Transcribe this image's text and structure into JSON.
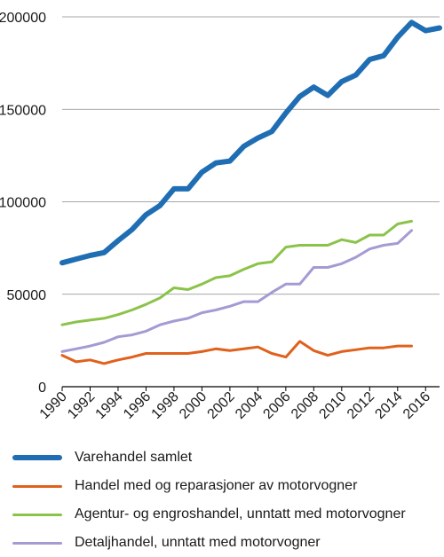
{
  "chart_data": {
    "type": "line",
    "title": "",
    "xlabel": "",
    "ylabel": "",
    "ylim": [
      0,
      200000
    ],
    "yticks": [
      0,
      50000,
      100000,
      150000,
      200000
    ],
    "xticks": [
      1990,
      1992,
      1994,
      1996,
      1998,
      2000,
      2002,
      2004,
      2006,
      2008,
      2010,
      2012,
      2014,
      2016
    ],
    "xlim": [
      1990,
      2017
    ],
    "grid": true,
    "legend_position": "bottom",
    "series": [
      {
        "name": "Varehandel samlet",
        "color": "#1f6eb4",
        "x": [
          1990,
          1991,
          1992,
          1993,
          1994,
          1995,
          1996,
          1997,
          1998,
          1999,
          2000,
          2001,
          2002,
          2003,
          2004,
          2005,
          2006,
          2007,
          2008,
          2009,
          2010,
          2011,
          2012,
          2013,
          2014,
          2015,
          2016,
          2017
        ],
        "values": [
          67000,
          69000,
          71000,
          72500,
          79000,
          85000,
          93000,
          98000,
          107000,
          107000,
          116000,
          121000,
          122000,
          130000,
          134500,
          138000,
          148000,
          157000,
          162000,
          157500,
          165000,
          168500,
          177000,
          179000,
          189000,
          197000,
          192500,
          194000
        ]
      },
      {
        "name": "Handel med og reparasjoner av motorvogner",
        "color": "#e0611c",
        "x": [
          1990,
          1991,
          1992,
          1993,
          1994,
          1995,
          1996,
          1997,
          1998,
          1999,
          2000,
          2001,
          2002,
          2003,
          2004,
          2005,
          2006,
          2007,
          2008,
          2009,
          2010,
          2011,
          2012,
          2013,
          2014,
          2015
        ],
        "values": [
          17000,
          13500,
          14500,
          12500,
          14500,
          16000,
          18000,
          18000,
          18000,
          18000,
          19000,
          20500,
          19500,
          20500,
          21500,
          18000,
          16000,
          24500,
          19500,
          17000,
          19000,
          20000,
          21000,
          21000,
          22000,
          22000
        ]
      },
      {
        "name": "Agentur- og engroshandel, unntatt med motorvogner",
        "color": "#8bc34a",
        "x": [
          1990,
          1991,
          1992,
          1993,
          1994,
          1995,
          1996,
          1997,
          1998,
          1999,
          2000,
          2001,
          2002,
          2003,
          2004,
          2005,
          2006,
          2007,
          2008,
          2009,
          2010,
          2011,
          2012,
          2013,
          2014,
          2015
        ],
        "values": [
          33500,
          35000,
          36000,
          37000,
          39000,
          41500,
          44500,
          48000,
          53500,
          52500,
          55500,
          59000,
          60000,
          63500,
          66500,
          67500,
          75500,
          76500,
          76500,
          76500,
          79500,
          78000,
          82000,
          82000,
          88000,
          89500
        ]
      },
      {
        "name": "Detaljhandel, unntatt med motorvogner",
        "color": "#a59ad3",
        "x": [
          1990,
          1991,
          1992,
          1993,
          1994,
          1995,
          1996,
          1997,
          1998,
          1999,
          2000,
          2001,
          2002,
          2003,
          2004,
          2005,
          2006,
          2007,
          2008,
          2009,
          2010,
          2011,
          2012,
          2013,
          2014,
          2015
        ],
        "values": [
          19000,
          20500,
          22000,
          24000,
          27000,
          28000,
          30000,
          33500,
          35500,
          37000,
          40000,
          41500,
          43500,
          46000,
          46000,
          51000,
          55500,
          55500,
          64500,
          64500,
          66500,
          70000,
          74500,
          76500,
          77500,
          84500
        ]
      }
    ]
  }
}
